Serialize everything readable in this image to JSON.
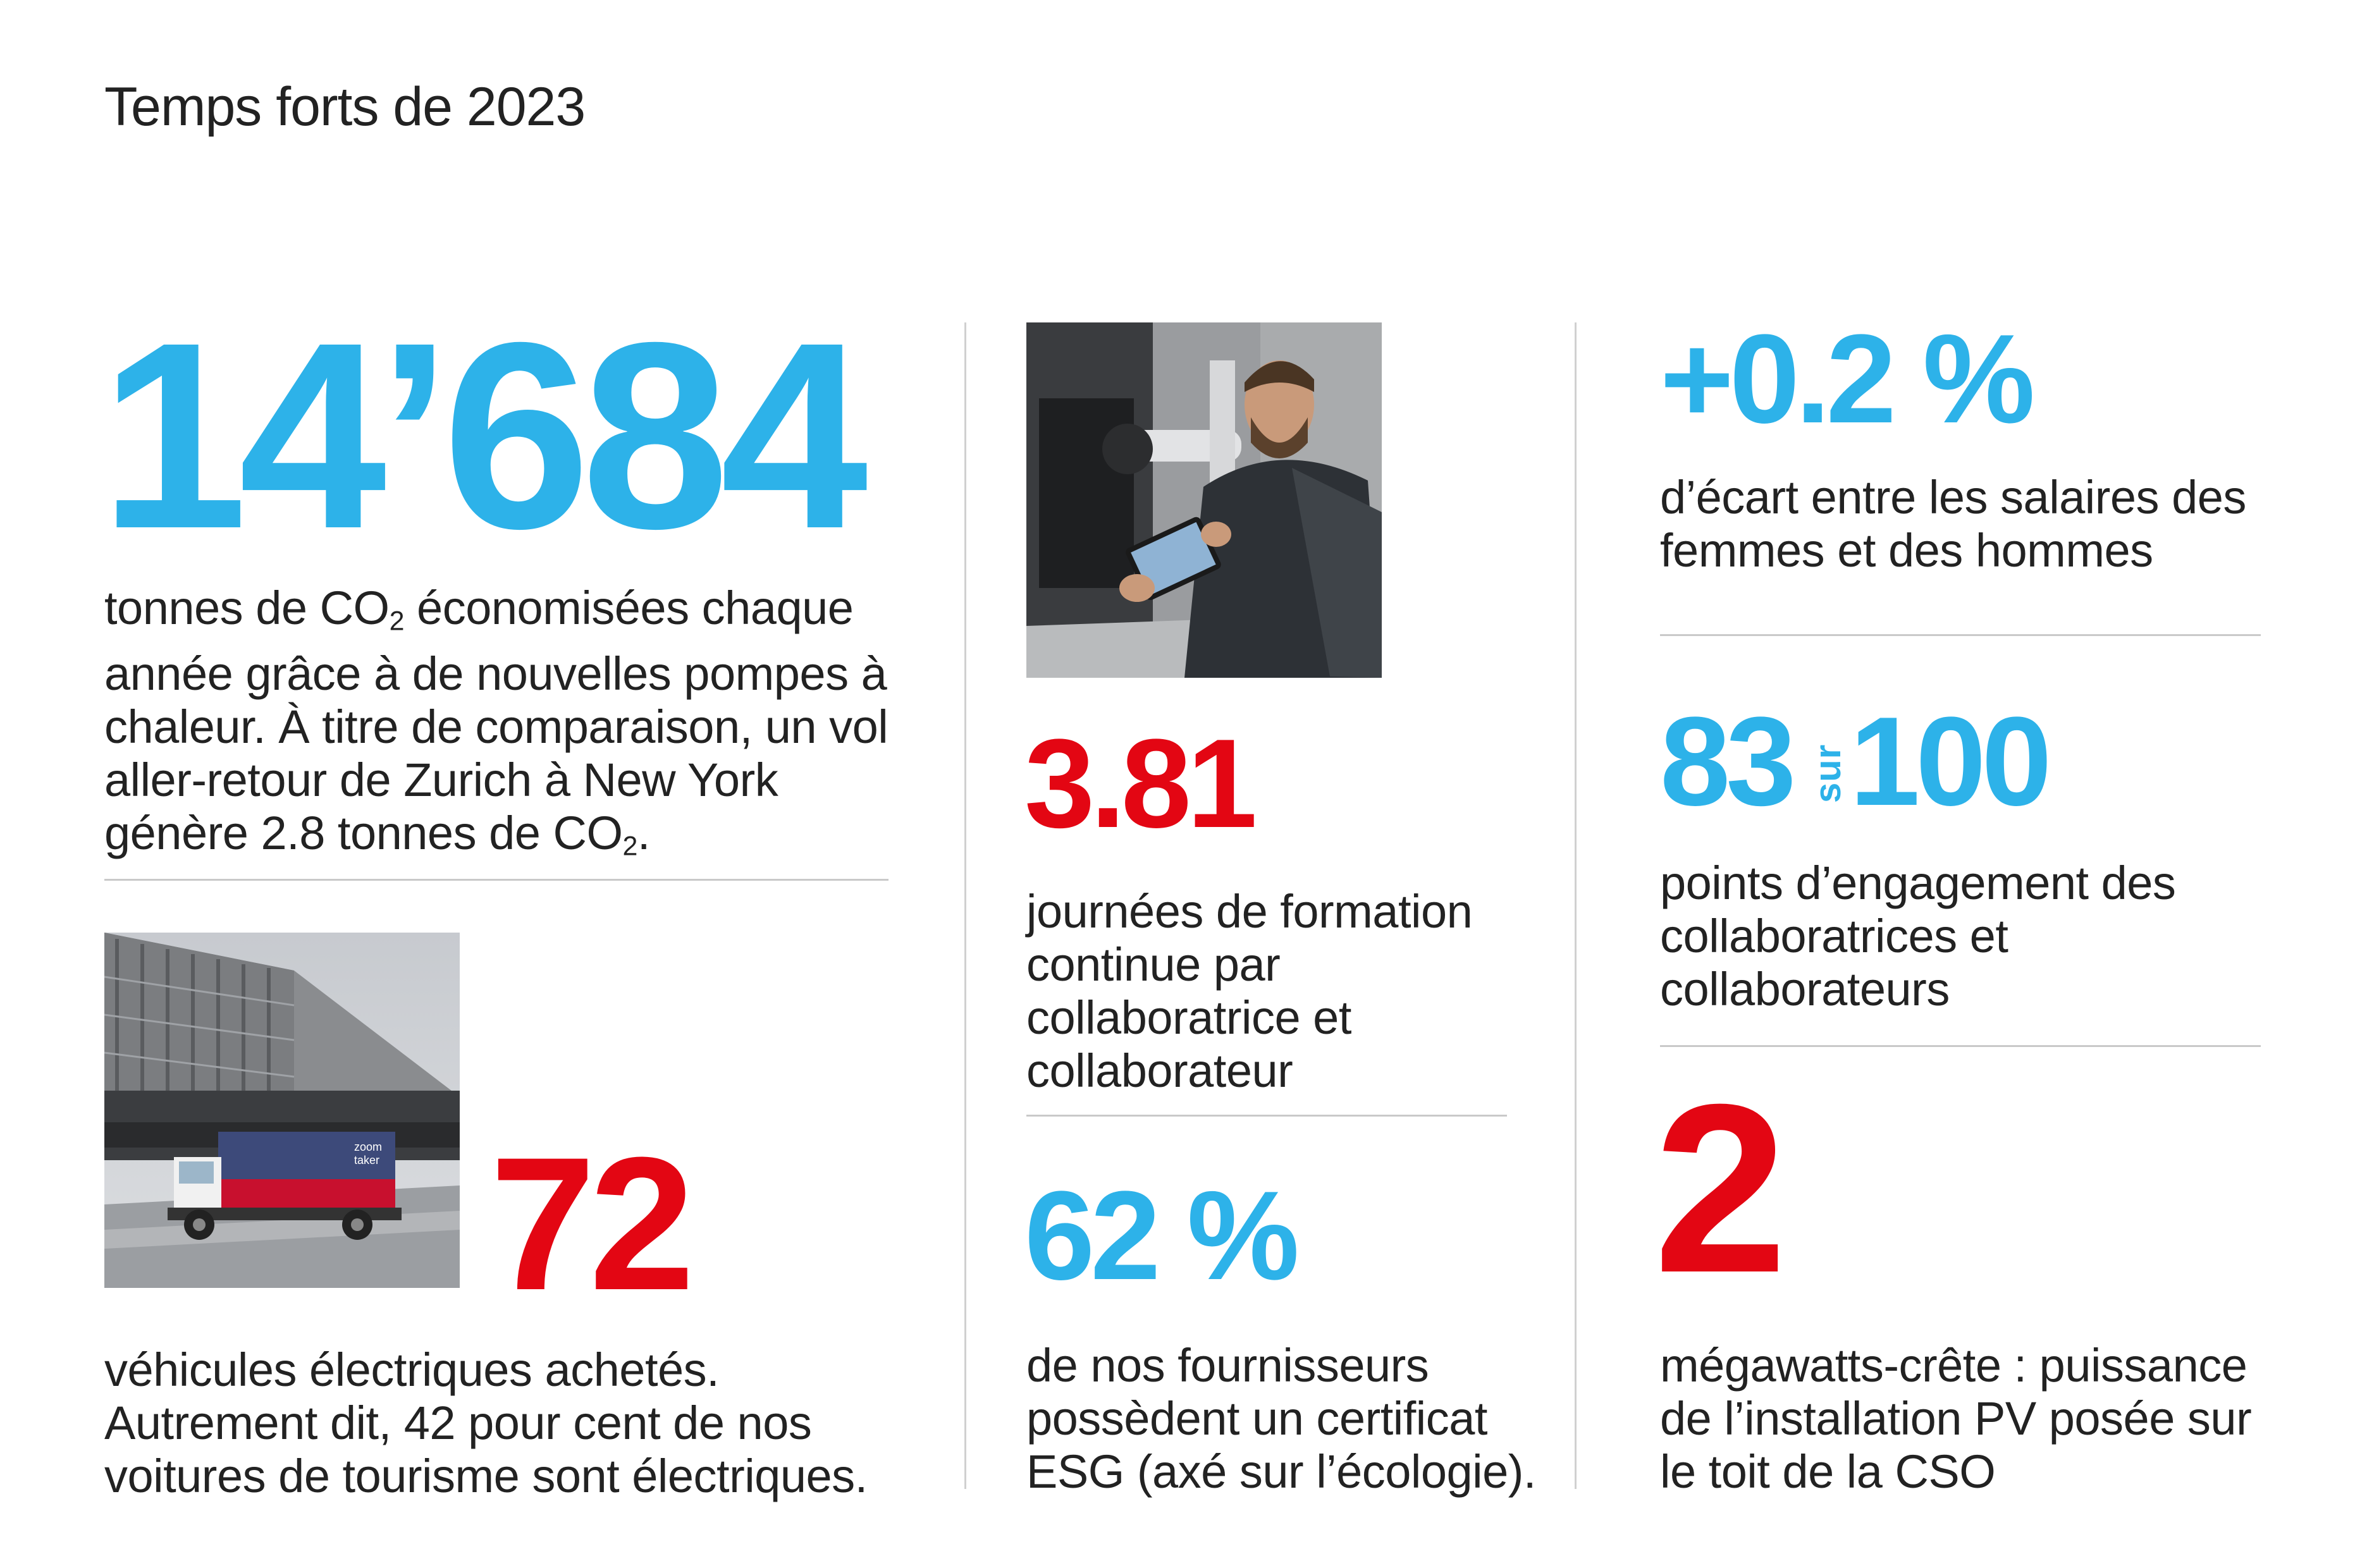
{
  "page": {
    "title": "Temps forts de 2023"
  },
  "co2": {
    "value": "14’684",
    "desc_1": "tonnes de CO",
    "desc_2": " économisées chaque année grâce à de nouvelles pompes à chaleur. À titre de comparaison, un vol aller-retour de Zurich à New York génère 2.8 tonnes de CO",
    "desc_3": ".",
    "subscript": "2"
  },
  "vehicles": {
    "value": "72",
    "desc": "véhicules électriques achetés. Autrement dit, 42 pour cent de nos voitures de tourisme sont électriques."
  },
  "training": {
    "value": "3.81",
    "desc": "journées de formation continue par collaboratrice et collaborateur"
  },
  "suppliers": {
    "value": "62 %",
    "desc": "de nos fournisseurs possèdent un certificat ESG (axé sur l’écologie)."
  },
  "pay_gap": {
    "value": "+0.2 %",
    "desc": "d’écart entre les salaires des femmes et des hommes"
  },
  "engagement": {
    "value_left": "83",
    "value_mid": "sur",
    "value_right": "100",
    "desc": "points d’engagement des collaboratrices et collaborateurs"
  },
  "solar": {
    "value": "2",
    "desc": "mégawatts-crête : puissance de l’installation PV posée sur le toit de la CSO"
  },
  "images": {
    "truck_logo_line_1": "zoom",
    "truck_logo_line_2": "taker"
  },
  "colors": {
    "blue": "#2db2e9",
    "red": "#e30613",
    "text": "#222222",
    "rule": "#c9c9c9"
  }
}
